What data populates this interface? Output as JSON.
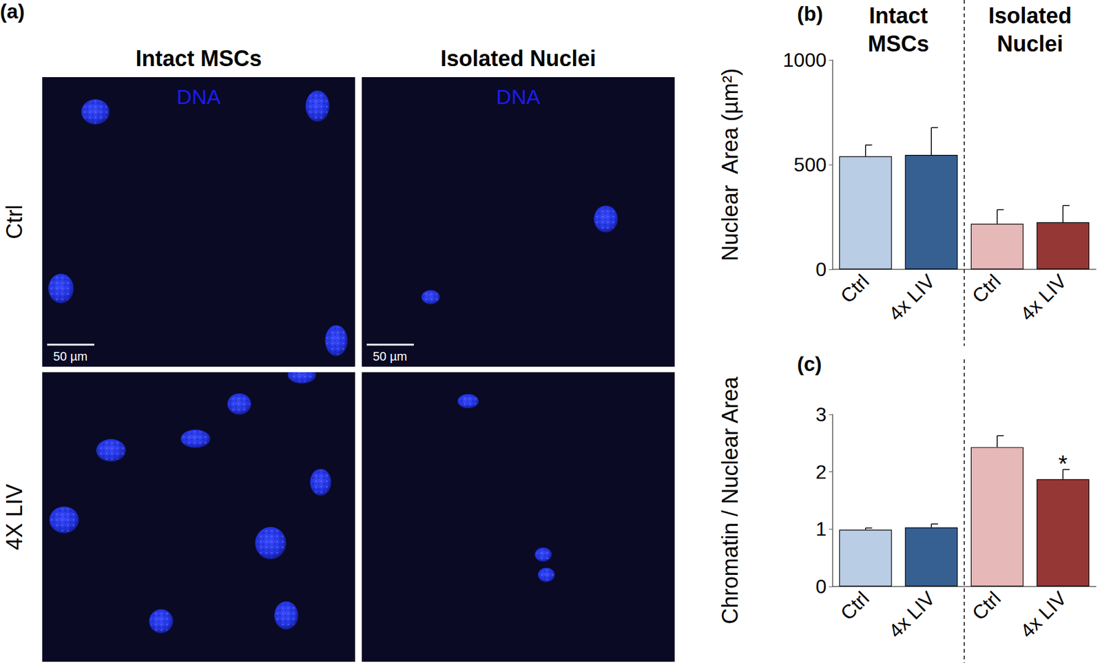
{
  "figure": {
    "panel_a": {
      "label": "(a)",
      "columns": [
        "Intact MSCs",
        "Isolated Nuclei"
      ],
      "rows": [
        "Ctrl",
        "4X LIV"
      ],
      "stain": "DNA",
      "scale_bar": "50 µm"
    },
    "group_headers": [
      "Intact MSCs",
      "Isolated Nuclei"
    ]
  },
  "chart_data": [
    {
      "type": "bar",
      "panel": "(b)",
      "y_label": "Nuclear  Area (µm²)",
      "categories": [
        "Ctrl",
        "4x LIV",
        "Ctrl",
        "4x LIV"
      ],
      "values": [
        540,
        547,
        218,
        225
      ],
      "errors": [
        54,
        130,
        67,
        80
      ],
      "colors": [
        "#b9cde5",
        "#376092",
        "#e6b9b8",
        "#953735"
      ],
      "ylim": [
        0,
        1000
      ],
      "yticks": [
        0,
        500,
        1000
      ],
      "grid": false
    },
    {
      "type": "bar",
      "panel": "(c)",
      "y_label": "Chromatin / Nuclear Area",
      "categories": [
        "Ctrl",
        "4x LIV",
        "Ctrl",
        "4x LIV"
      ],
      "values": [
        0.99,
        1.03,
        2.43,
        1.87
      ],
      "errors": [
        0.03,
        0.06,
        0.2,
        0.17
      ],
      "significance": [
        null,
        null,
        null,
        "*"
      ],
      "colors": [
        "#b9cde5",
        "#376092",
        "#e6b9b8",
        "#953735"
      ],
      "ylim": [
        0,
        3
      ],
      "yticks": [
        0,
        1,
        2,
        3
      ],
      "grid": false
    }
  ]
}
